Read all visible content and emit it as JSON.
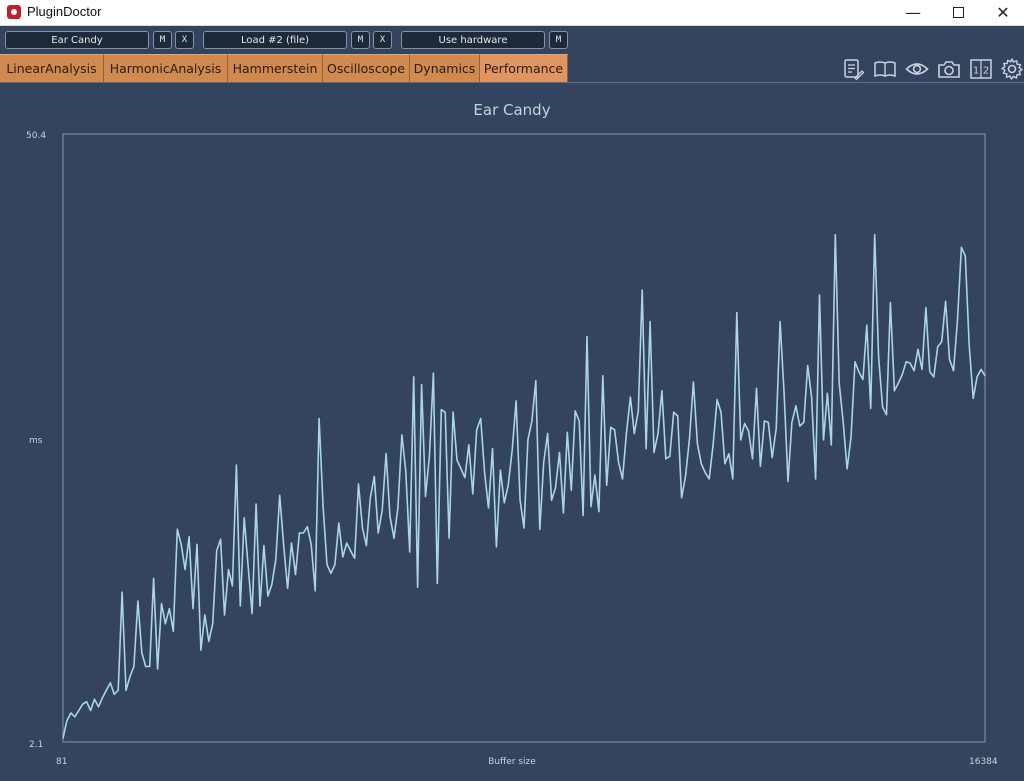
{
  "window": {
    "title": "PluginDoctor"
  },
  "controls": {
    "plugin1": "Ear Candy",
    "m1": "M",
    "x1": "X",
    "plugin2": "Load #2 (file)",
    "m2": "M",
    "x2": "X",
    "hardware": "Use hardware",
    "m3": "M"
  },
  "tabs": [
    "LinearAnalysis",
    "HarmonicAnalysis",
    "Hammerstein",
    "Oscilloscope",
    "Dynamics",
    "Performance"
  ],
  "active_tab": "Performance",
  "toolbar_icons": [
    "notes-icon",
    "book-icon",
    "eye-icon",
    "camera-icon",
    "compare-icon",
    "gear-icon"
  ],
  "colors": {
    "background": "#34435e",
    "tab": "#d08a4f",
    "line": "#a8d6e8"
  },
  "chart_data": {
    "type": "line",
    "title": "Ear Candy",
    "xlabel": "Buffer size",
    "ylabel": "ms",
    "xlim": [
      81,
      16384
    ],
    "ylim": [
      2.1,
      50.4
    ],
    "x_tick_labels": [
      "81",
      "16384"
    ],
    "y_tick_labels": [
      "50.4",
      "2.1"
    ],
    "grid": false,
    "series": [
      {
        "values": [
          2.4,
          3.8,
          4.4,
          4.1,
          4.6,
          5.1,
          5.3,
          4.6,
          5.5,
          4.9,
          5.6,
          6.2,
          6.8,
          5.9,
          6.2,
          14.0,
          6.2,
          7.3,
          8.1,
          13.3,
          9.2,
          8.1,
          8.1,
          15.1,
          7.9,
          13.1,
          11.5,
          12.7,
          10.9,
          19.0,
          17.8,
          15.8,
          18.4,
          12.7,
          17.8,
          9.4,
          12.2,
          10.1,
          11.5,
          17.3,
          18.2,
          12.2,
          15.8,
          14.5,
          24.1,
          12.9,
          19.9,
          16.0,
          12.3,
          21.0,
          12.9,
          17.7,
          13.7,
          14.6,
          16.6,
          21.7,
          17.8,
          14.3,
          17.9,
          15.4,
          18.7,
          18.7,
          19.2,
          17.8,
          14.1,
          27.8,
          20.8,
          16.2,
          15.5,
          16.2,
          19.5,
          16.8,
          17.9,
          17.3,
          16.7,
          22.6,
          19.1,
          17.7,
          21.5,
          23.2,
          18.7,
          20.5,
          25.0,
          20.0,
          18.3,
          20.7,
          26.5,
          23.6,
          17.2,
          31.1,
          14.4,
          30.5,
          21.6,
          24.8,
          31.4,
          14.7,
          28.5,
          28.3,
          18.3,
          28.3,
          24.5,
          23.8,
          23.1,
          25.7,
          21.8,
          26.9,
          27.8,
          23.5,
          20.7,
          25.4,
          17.6,
          23.7,
          21.1,
          22.5,
          25.3,
          29.2,
          21.3,
          19.1,
          26.1,
          27.6,
          30.8,
          19.0,
          24.3,
          26.6,
          21.3,
          22.3,
          25.1,
          20.3,
          26.7,
          22.1,
          28.4,
          27.6,
          20.1,
          34.3,
          20.8,
          23.3,
          20.4,
          31.2,
          22.5,
          27.1,
          26.9,
          24.3,
          23.0,
          26.6,
          29.5,
          26.6,
          28.4,
          38.0,
          25.4,
          35.5,
          25.1,
          26.6,
          30.0,
          24.6,
          24.8,
          28.3,
          28.0,
          21.5,
          23.2,
          26.2,
          30.7,
          25.8,
          24.2,
          23.5,
          23.0,
          25.7,
          29.3,
          28.3,
          24.2,
          25.0,
          23.0,
          36.2,
          26.1,
          27.4,
          26.8,
          24.6,
          30.2,
          24.0,
          27.6,
          27.5,
          24.7,
          27.0,
          35.5,
          29.8,
          22.8,
          27.5,
          28.8,
          27.2,
          27.5,
          32.0,
          29.5,
          23.0,
          37.6,
          26.1,
          29.8,
          25.7,
          42.4,
          30.6,
          27.5,
          23.8,
          26.3,
          32.3,
          31.5,
          30.9,
          35.2,
          28.6,
          42.4,
          32.7,
          28.7,
          28.1,
          37.0,
          30.0,
          30.6,
          31.3,
          32.3,
          32.2,
          31.6,
          33.3,
          31.7,
          36.6,
          31.5,
          31.1,
          33.5,
          33.9,
          37.1,
          32.5,
          31.6,
          35.5,
          41.4,
          40.7,
          33.6,
          29.4,
          31.1,
          31.7,
          31.2
        ]
      }
    ]
  }
}
